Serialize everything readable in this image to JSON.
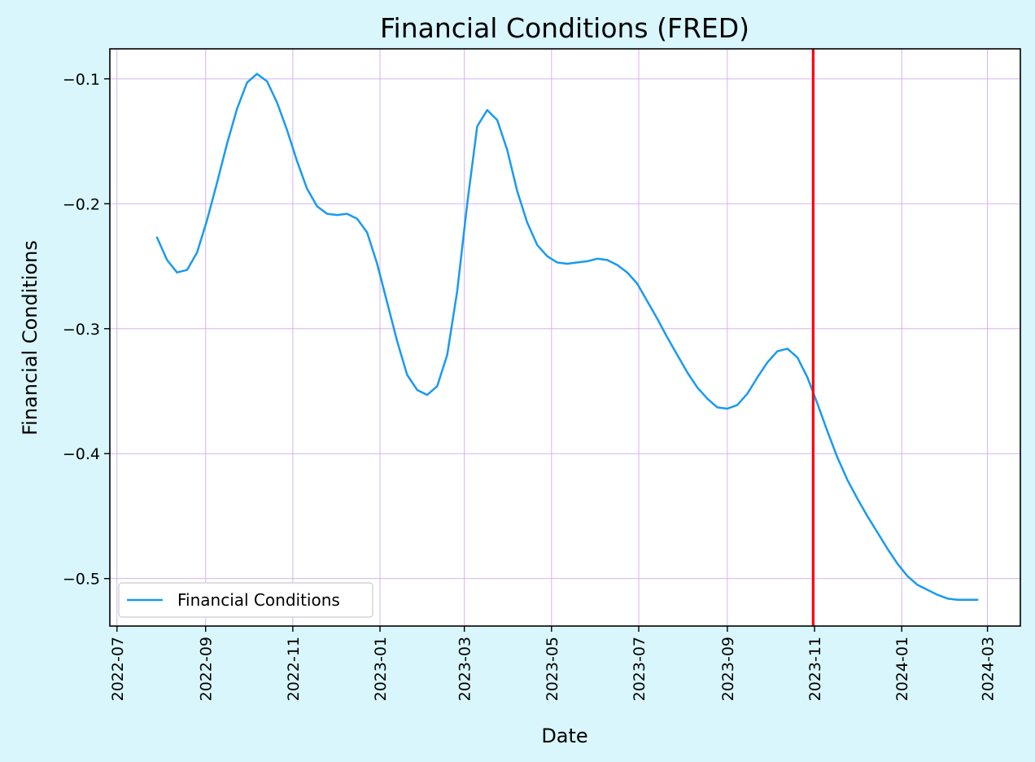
{
  "colors": {
    "figure_background": "#d8f6fb",
    "plot_background": "#ffffff",
    "grid": "#d6b3ee",
    "series_line": "#1a9af0",
    "marker_line": "#ff0000"
  },
  "chart_data": {
    "type": "line",
    "title": "Financial Conditions (FRED)",
    "xlabel": "Date",
    "ylabel": "Financial Conditions",
    "grid": true,
    "legend_placement": "lower-left",
    "xlim": [
      "2022-06-26",
      "2024-03-24"
    ],
    "ylim": [
      -0.538,
      -0.076
    ],
    "x_ticks": [
      "2022-07",
      "2022-09",
      "2022-11",
      "2023-01",
      "2023-03",
      "2023-05",
      "2023-07",
      "2023-09",
      "2023-11",
      "2024-01",
      "2024-03"
    ],
    "y_ticks": [
      -0.1,
      -0.2,
      -0.3,
      -0.4,
      -0.5
    ],
    "y_tick_labels": [
      "−0.1",
      "−0.2",
      "−0.3",
      "−0.4",
      "−0.5"
    ],
    "series": [
      {
        "name": "Financial Conditions",
        "x": [
          "2022-07-29",
          "2022-08-05",
          "2022-08-12",
          "2022-08-19",
          "2022-08-26",
          "2022-09-02",
          "2022-09-09",
          "2022-09-16",
          "2022-09-23",
          "2022-09-30",
          "2022-10-07",
          "2022-10-14",
          "2022-10-21",
          "2022-10-28",
          "2022-11-04",
          "2022-11-11",
          "2022-11-18",
          "2022-11-25",
          "2022-12-02",
          "2022-12-09",
          "2022-12-16",
          "2022-12-23",
          "2022-12-30",
          "2023-01-06",
          "2023-01-13",
          "2023-01-20",
          "2023-01-27",
          "2023-02-03",
          "2023-02-10",
          "2023-02-17",
          "2023-02-24",
          "2023-03-03",
          "2023-03-10",
          "2023-03-17",
          "2023-03-24",
          "2023-03-31",
          "2023-04-07",
          "2023-04-14",
          "2023-04-21",
          "2023-04-28",
          "2023-05-05",
          "2023-05-12",
          "2023-05-19",
          "2023-05-26",
          "2023-06-02",
          "2023-06-09",
          "2023-06-16",
          "2023-06-23",
          "2023-06-30",
          "2023-07-07",
          "2023-07-14",
          "2023-07-21",
          "2023-07-28",
          "2023-08-04",
          "2023-08-11",
          "2023-08-18",
          "2023-08-25",
          "2023-09-01",
          "2023-09-08",
          "2023-09-15",
          "2023-09-22",
          "2023-09-29",
          "2023-10-06",
          "2023-10-13",
          "2023-10-20",
          "2023-10-27",
          "2023-11-03",
          "2023-11-10",
          "2023-11-17",
          "2023-11-24",
          "2023-12-01",
          "2023-12-08",
          "2023-12-15",
          "2023-12-22",
          "2023-12-29",
          "2024-01-05",
          "2024-01-12",
          "2024-01-19",
          "2024-01-26",
          "2024-02-02",
          "2024-02-09",
          "2024-02-16",
          "2024-02-23"
        ],
        "y": [
          -0.227,
          -0.245,
          -0.255,
          -0.253,
          -0.239,
          -0.213,
          -0.183,
          -0.152,
          -0.124,
          -0.103,
          -0.096,
          -0.102,
          -0.119,
          -0.141,
          -0.166,
          -0.188,
          -0.202,
          -0.208,
          -0.209,
          -0.208,
          -0.212,
          -0.223,
          -0.248,
          -0.279,
          -0.31,
          -0.337,
          -0.349,
          -0.353,
          -0.346,
          -0.321,
          -0.27,
          -0.2,
          -0.138,
          -0.125,
          -0.133,
          -0.157,
          -0.19,
          -0.215,
          -0.233,
          -0.242,
          -0.247,
          -0.248,
          -0.247,
          -0.246,
          -0.244,
          -0.245,
          -0.249,
          -0.255,
          -0.264,
          -0.278,
          -0.292,
          -0.307,
          -0.321,
          -0.335,
          -0.347,
          -0.356,
          -0.363,
          -0.364,
          -0.361,
          -0.352,
          -0.339,
          -0.327,
          -0.318,
          -0.316,
          -0.323,
          -0.339,
          -0.36,
          -0.382,
          -0.403,
          -0.421,
          -0.436,
          -0.45,
          -0.463,
          -0.476,
          -0.488,
          -0.498,
          -0.505,
          -0.509,
          -0.513,
          -0.516,
          -0.517,
          -0.517,
          -0.517
        ]
      }
    ],
    "vertical_line": {
      "x": "2023-10-31"
    }
  }
}
